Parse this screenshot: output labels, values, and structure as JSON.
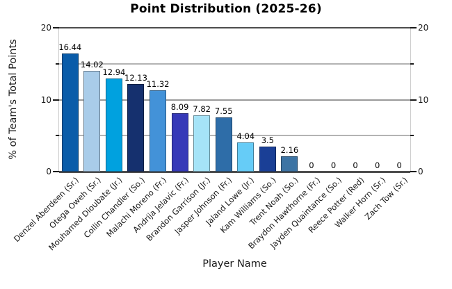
{
  "chart_data": {
    "type": "bar",
    "title": "Point Distribution (2025-26)",
    "xlabel": "Player Name",
    "ylabel": "% of Team's Total Points",
    "ylim": [
      0,
      20
    ],
    "ytick_values": [
      0,
      10,
      20
    ],
    "ytick_labels": [
      "0",
      "10",
      "20"
    ],
    "ytick_minor_values": [
      5,
      15
    ],
    "gridline_values": [
      5,
      10,
      15,
      20
    ],
    "grid": true,
    "legend": false,
    "axes_mirrored": true,
    "categories": [
      "Denzel Aberdeen (Sr.)",
      "Otega Oweh (Sr.)",
      "Mouhamed Dioubate (Jr.)",
      "Collin Chandler (So.)",
      "Malachi Moreno (Fr.)",
      "Andrija Jelavic (Fr.)",
      "Brandon Garrison (Jr.)",
      "Jasper Johnson (Fr.)",
      "Jaland Lowe (Jr.)",
      "Kam Williams (So.)",
      "Trent Noah (So.)",
      "Braydon Hawthorne (Fr.)",
      "Jayden Quaintance (So.)",
      "Reece Potter (Red)",
      "Walker Horn (Sr.)",
      "Zach Tow (Sr.)"
    ],
    "values": [
      16.44,
      14.02,
      12.94,
      12.13,
      11.32,
      8.09,
      7.82,
      7.55,
      4.04,
      3.5,
      2.16,
      0,
      0,
      0,
      0,
      0
    ],
    "value_labels": [
      "16.44",
      "14.02",
      "12.94",
      "12.13",
      "11.32",
      "8.09",
      "7.82",
      "7.55",
      "4.04",
      "3.5",
      "2.16",
      "0",
      "0",
      "0",
      "0",
      "0"
    ],
    "bar_colors": [
      "#0A5CA9",
      "#A9CCE9",
      "#00A1DF",
      "#15306E",
      "#4392D8",
      "#3639B8",
      "#A5E3F7",
      "#2E6DA8",
      "#66CCF7",
      "#1A3F96",
      "#3D74A4",
      null,
      null,
      null,
      null,
      null
    ]
  }
}
